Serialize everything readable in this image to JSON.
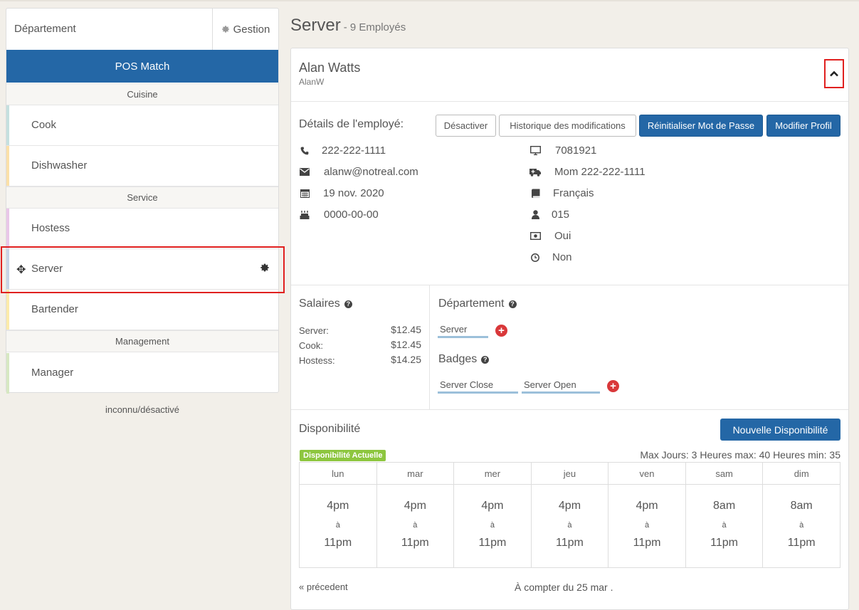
{
  "sidebar": {
    "title": "Département",
    "gestion_label": "Gestion",
    "location": "POS Match",
    "sections": [
      {
        "label": "Cuisine"
      },
      {
        "label": "Service"
      },
      {
        "label": "Management"
      }
    ],
    "items": [
      {
        "label": "Cook",
        "color": "#c5e0df"
      },
      {
        "label": "Dishwasher",
        "color": "#fbe0a8"
      },
      {
        "label": "Hostess",
        "color": "#e9c7e8"
      },
      {
        "label": "Server",
        "color": "#c8d4e6"
      },
      {
        "label": "Bartender",
        "color": "#fcebaa"
      },
      {
        "label": "Manager",
        "color": "#d7e8c2"
      }
    ],
    "inactive_label": "inconnu/désactivé"
  },
  "page": {
    "title": "Server",
    "subtitle": "- 9 Employés"
  },
  "employee": {
    "name": "Alan Watts",
    "username": "AlanW",
    "details_label": "Détails de l'employé:",
    "buttons": {
      "deactivate": "Désactiver",
      "history": "Historique des modifications",
      "reset_password": "Réinitialiser Mot de Passe",
      "edit_profile": "Modifier Profil"
    },
    "info_left": [
      {
        "icon": "phone-icon",
        "value": "222-222-1111"
      },
      {
        "icon": "envelope-icon",
        "value": "alanw@notreal.com"
      },
      {
        "icon": "calendar-icon",
        "value": "19 nov. 2020"
      },
      {
        "icon": "birthday-cake-icon",
        "value": "0000-00-00"
      }
    ],
    "info_right": [
      {
        "icon": "desktop-icon",
        "value": "7081921"
      },
      {
        "icon": "ambulance-icon",
        "value": "Mom 222-222-1111"
      },
      {
        "icon": "book-icon",
        "value": "Français"
      },
      {
        "icon": "user-icon",
        "value": "015"
      },
      {
        "icon": "money-icon",
        "value": "Oui"
      },
      {
        "icon": "clock-icon",
        "value": "Non"
      }
    ]
  },
  "wages": {
    "title": "Salaires",
    "rows": [
      {
        "label": "Server:",
        "value": "$12.45"
      },
      {
        "label": "Cook:",
        "value": "$12.45"
      },
      {
        "label": "Hostess:",
        "value": "$14.25"
      }
    ]
  },
  "departments": {
    "title": "Département",
    "tags": [
      "Server"
    ]
  },
  "badges": {
    "title": "Badges",
    "tags": [
      "Server Close",
      "Server Open"
    ]
  },
  "availability": {
    "title": "Disponibilité",
    "new_button": "Nouvelle Disponibilité",
    "current_badge": "Disponibilité Actuelle",
    "stats": "Max Jours: 3 Heures max: 40 Heures min: 35",
    "days": [
      "lun",
      "mar",
      "mer",
      "jeu",
      "ven",
      "sam",
      "dim"
    ],
    "slots": [
      {
        "start": "4pm",
        "sep": "à",
        "end": "11pm"
      },
      {
        "start": "4pm",
        "sep": "à",
        "end": "11pm"
      },
      {
        "start": "4pm",
        "sep": "à",
        "end": "11pm"
      },
      {
        "start": "4pm",
        "sep": "à",
        "end": "11pm"
      },
      {
        "start": "4pm",
        "sep": "à",
        "end": "11pm"
      },
      {
        "start": "8am",
        "sep": "à",
        "end": "11pm"
      },
      {
        "start": "8am",
        "sep": "à",
        "end": "11pm"
      }
    ],
    "prev_link": "« précedent",
    "from_text": "À compter du 25 mar ."
  },
  "colors": {
    "primary": "#2467a6",
    "highlight": "#e0201f",
    "success": "#8dc63f",
    "danger": "#d9383a"
  }
}
